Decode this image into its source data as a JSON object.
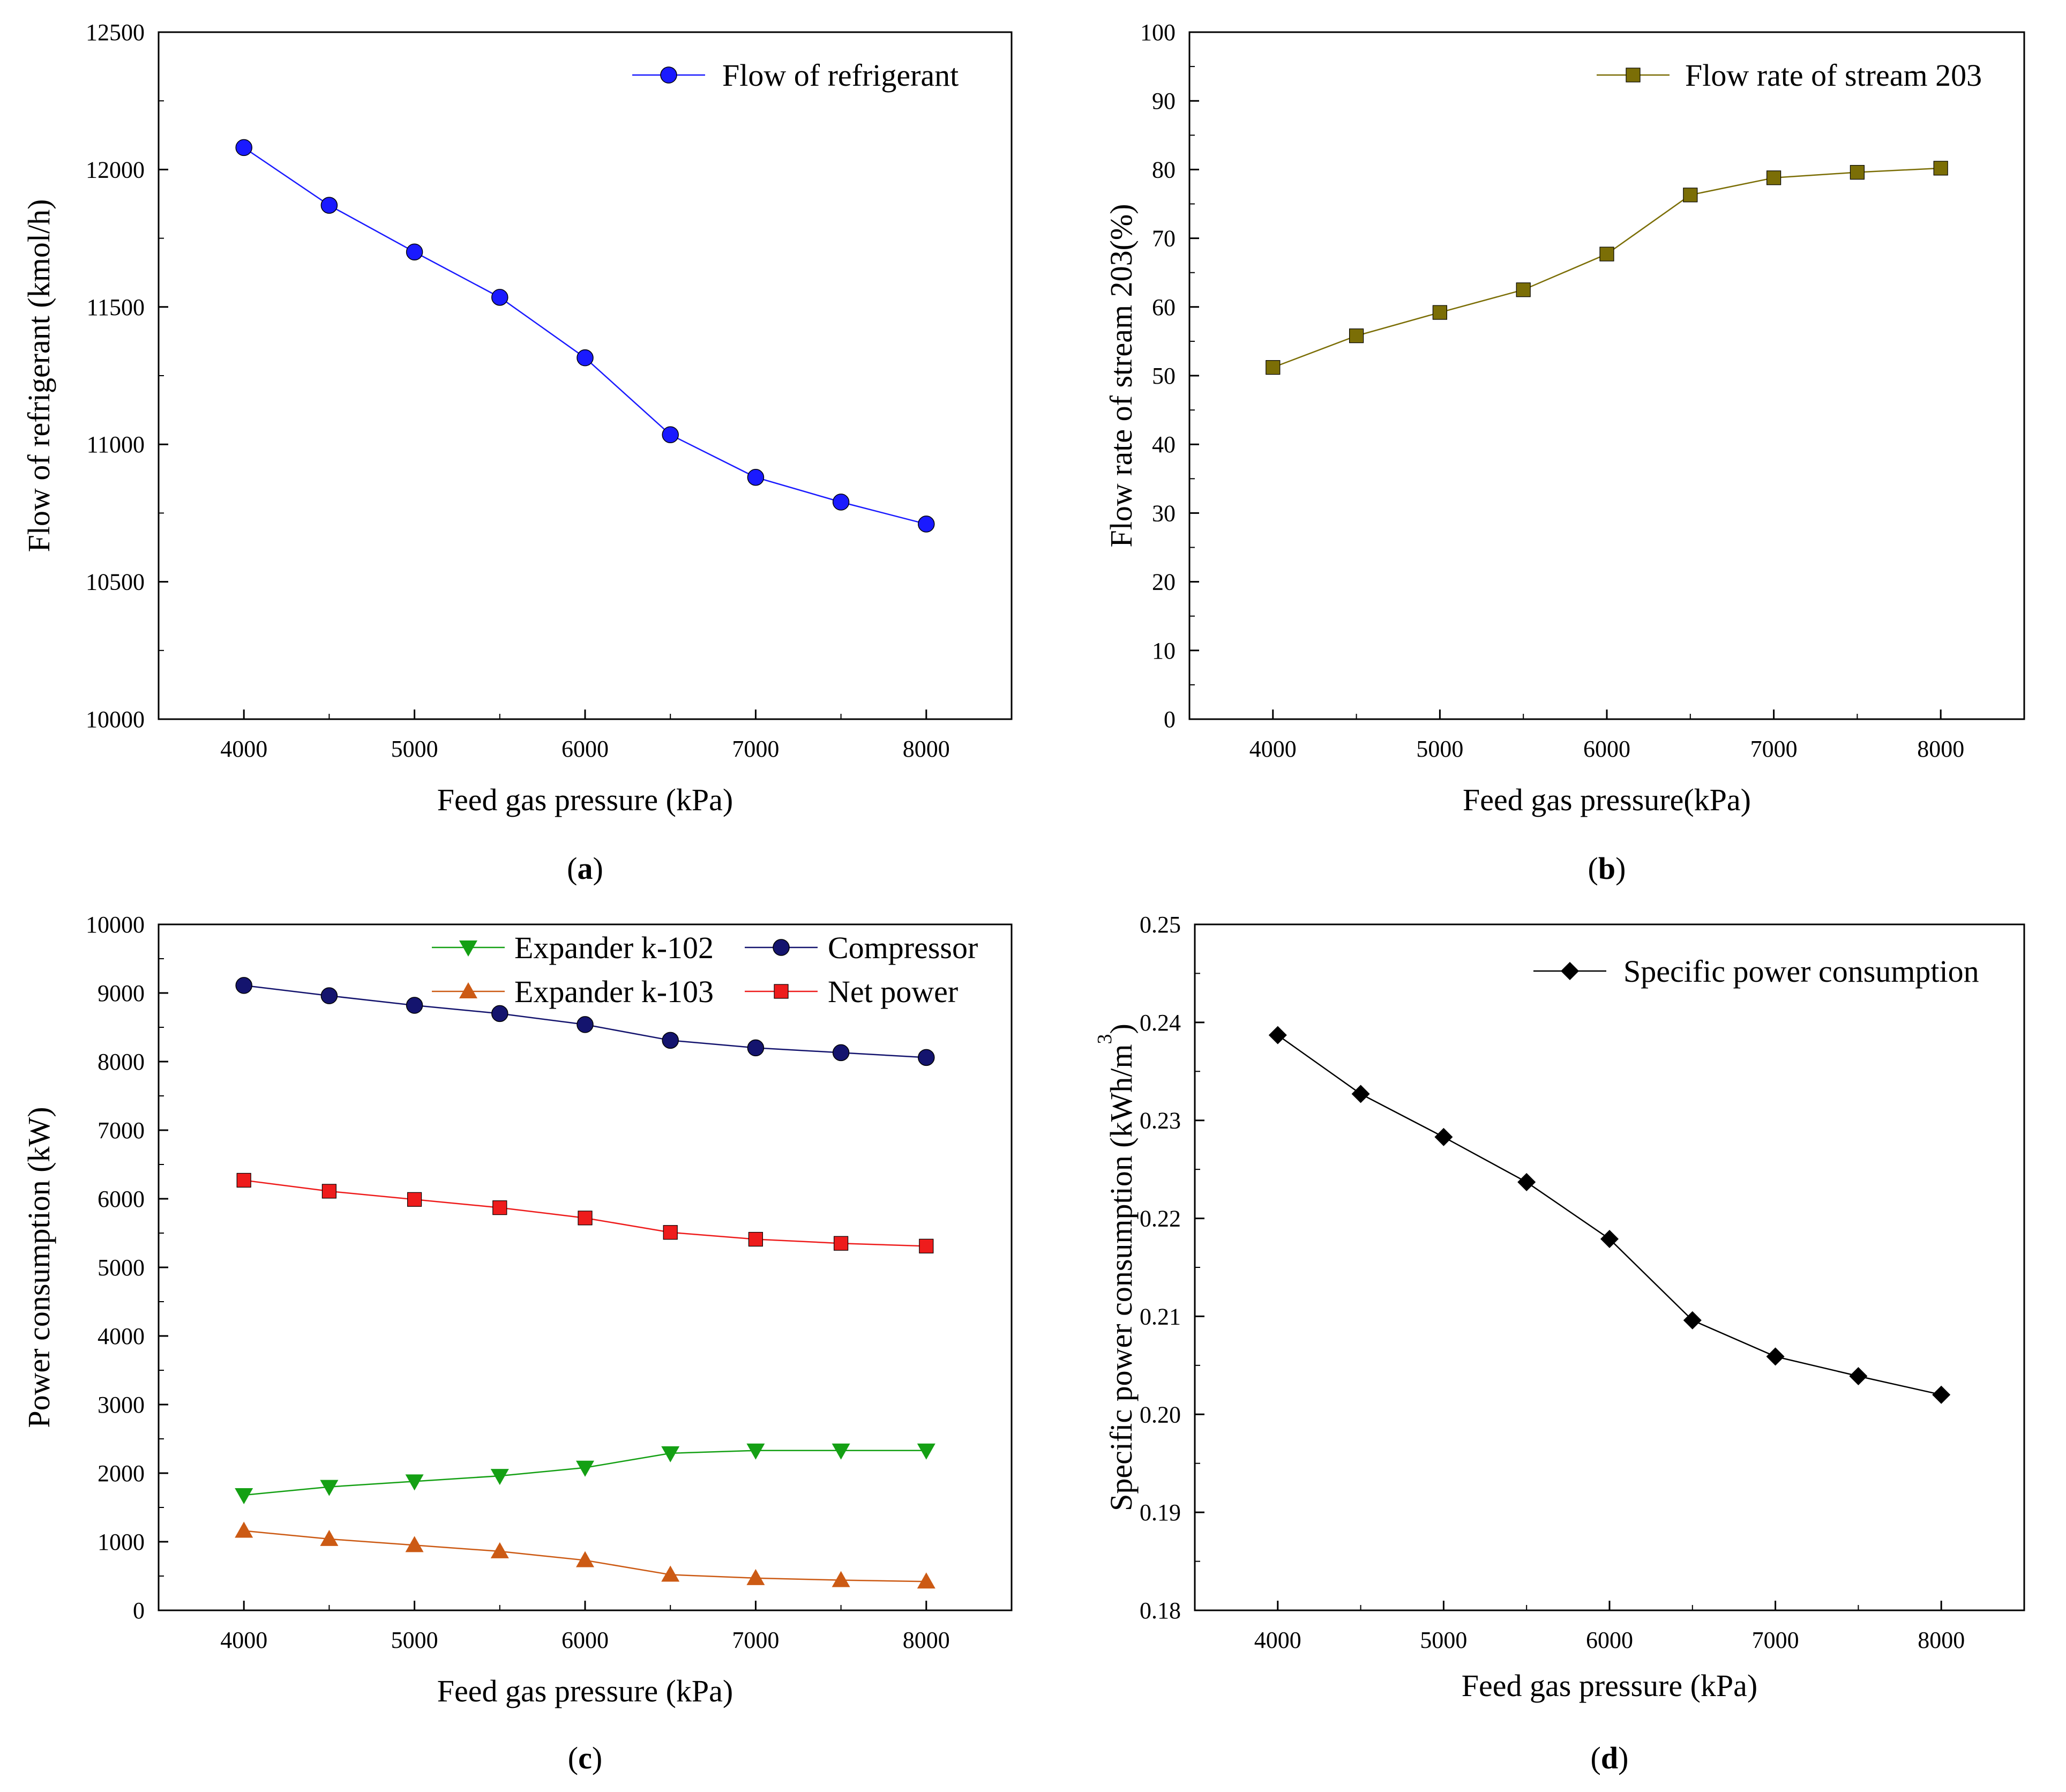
{
  "chart_data": [
    {
      "panel": "(a)",
      "caption_letter": "a",
      "type": "line",
      "xlabel": "Feed gas pressure (kPa)",
      "ylabel": "Flow of refrigerant (kmol/h)",
      "xlim": [
        3500,
        8500
      ],
      "ylim": [
        10000,
        12500
      ],
      "xticks": [
        4000,
        5000,
        6000,
        7000,
        8000
      ],
      "yticks": [
        10000,
        10500,
        11000,
        11500,
        12000,
        12500
      ],
      "legend_position": "top-right",
      "x": [
        4000,
        4500,
        5000,
        5500,
        6000,
        6500,
        7000,
        7500,
        8000
      ],
      "series": [
        {
          "name": "Flow of refrigerant",
          "marker": "circle",
          "color": "#1a1aff",
          "values": [
            12080,
            11870,
            11700,
            11535,
            11315,
            11035,
            10880,
            10790,
            10710
          ]
        }
      ]
    },
    {
      "panel": "(b)",
      "caption_letter": "b",
      "type": "line",
      "xlabel": "Feed gas pressure(kPa)",
      "ylabel": "Flow rate of stream 203(%)",
      "xlim": [
        3500,
        8500
      ],
      "ylim": [
        0,
        100
      ],
      "xticks": [
        4000,
        5000,
        6000,
        7000,
        8000
      ],
      "yticks": [
        0,
        10,
        20,
        30,
        40,
        50,
        60,
        70,
        80,
        90,
        100
      ],
      "legend_position": "top-right",
      "x": [
        4000,
        4500,
        5000,
        5500,
        6000,
        6500,
        7000,
        7500,
        8000
      ],
      "series": [
        {
          "name": "Flow rate of stream 203",
          "marker": "square",
          "color": "#7b6e06",
          "values": [
            51.2,
            55.8,
            59.2,
            62.5,
            67.7,
            76.3,
            78.8,
            79.6,
            80.2
          ]
        }
      ]
    },
    {
      "panel": "(c)",
      "caption_letter": "c",
      "type": "line",
      "xlabel": "Feed gas pressure (kPa)",
      "ylabel": "Power consumption (kW)",
      "xlim": [
        3500,
        8500
      ],
      "ylim": [
        0,
        10000
      ],
      "xticks": [
        4000,
        5000,
        6000,
        7000,
        8000
      ],
      "yticks": [
        0,
        1000,
        2000,
        3000,
        4000,
        5000,
        6000,
        7000,
        8000,
        9000,
        10000
      ],
      "legend_position": "top",
      "x": [
        4000,
        4500,
        5000,
        5500,
        6000,
        6500,
        7000,
        7500,
        8000
      ],
      "series": [
        {
          "name": "Expander k-102",
          "marker": "triangle-down",
          "color": "#14a014",
          "values": [
            1680,
            1800,
            1880,
            1960,
            2080,
            2290,
            2330,
            2330,
            2330
          ]
        },
        {
          "name": "Compressor",
          "marker": "circle",
          "color": "#14146e",
          "values": [
            9110,
            8960,
            8820,
            8700,
            8540,
            8310,
            8200,
            8130,
            8060
          ]
        },
        {
          "name": "Expander k-103",
          "marker": "triangle-up",
          "color": "#cc5a14",
          "values": [
            1160,
            1040,
            950,
            860,
            730,
            520,
            470,
            440,
            420
          ]
        },
        {
          "name": "Net power",
          "marker": "square",
          "color": "#ee1c1c",
          "values": [
            6270,
            6110,
            5990,
            5870,
            5720,
            5510,
            5410,
            5350,
            5310
          ]
        }
      ]
    },
    {
      "panel": "(d)",
      "caption_letter": "d",
      "type": "line",
      "xlabel": "Feed gas pressure (kPa)",
      "ylabel": "Specific power consumption (kWh/m",
      "ylabel_superscript": "3",
      "ylabel_suffix": ")",
      "xlim": [
        3500,
        8500
      ],
      "ylim": [
        0.18,
        0.25
      ],
      "xticks": [
        4000,
        5000,
        6000,
        7000,
        8000
      ],
      "yticks": [
        0.18,
        0.19,
        0.2,
        0.21,
        0.22,
        0.23,
        0.24,
        0.25
      ],
      "ytick_labels": [
        "0.18",
        "0.19",
        "0.20",
        "0.21",
        "0.22",
        "0.23",
        "0.24",
        "0.25"
      ],
      "legend_position": "top-right",
      "x": [
        4000,
        4500,
        5000,
        5500,
        6000,
        6500,
        7000,
        7500,
        8000
      ],
      "series": [
        {
          "name": "Specific power consumption",
          "marker": "diamond",
          "color": "#000000",
          "values": [
            0.2387,
            0.2327,
            0.2283,
            0.2237,
            0.2179,
            0.2096,
            0.2059,
            0.2039,
            0.202
          ]
        }
      ]
    }
  ]
}
